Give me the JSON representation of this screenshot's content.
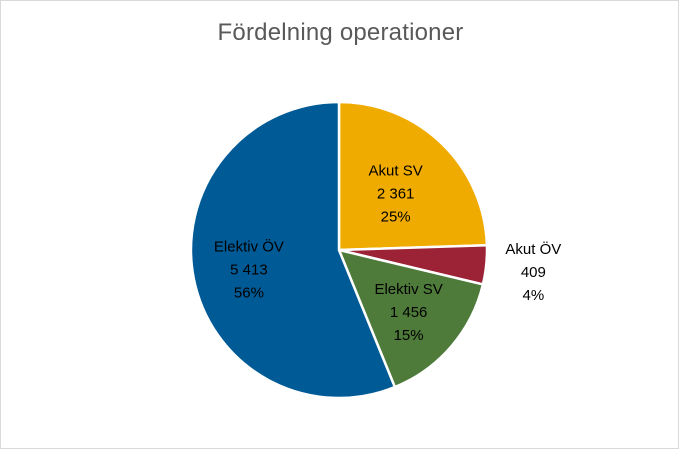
{
  "chart_data": {
    "type": "pie",
    "title": "Fördelning operationer",
    "slices": [
      {
        "name": "Akut SV",
        "value": 2361,
        "value_label": "2 361",
        "percent_label": "25%",
        "color": "#F0AB00"
      },
      {
        "name": "Akut ÖV",
        "value": 409,
        "value_label": "409",
        "percent_label": "4%",
        "color": "#9B2335"
      },
      {
        "name": "Elektiv SV",
        "value": 1456,
        "value_label": "1 456",
        "percent_label": "15%",
        "color": "#4E7A3A"
      },
      {
        "name": "Elektiv ÖV",
        "value": 5413,
        "value_label": "5 413",
        "percent_label": "56%",
        "color": "#005A96"
      }
    ],
    "legend": "none"
  }
}
